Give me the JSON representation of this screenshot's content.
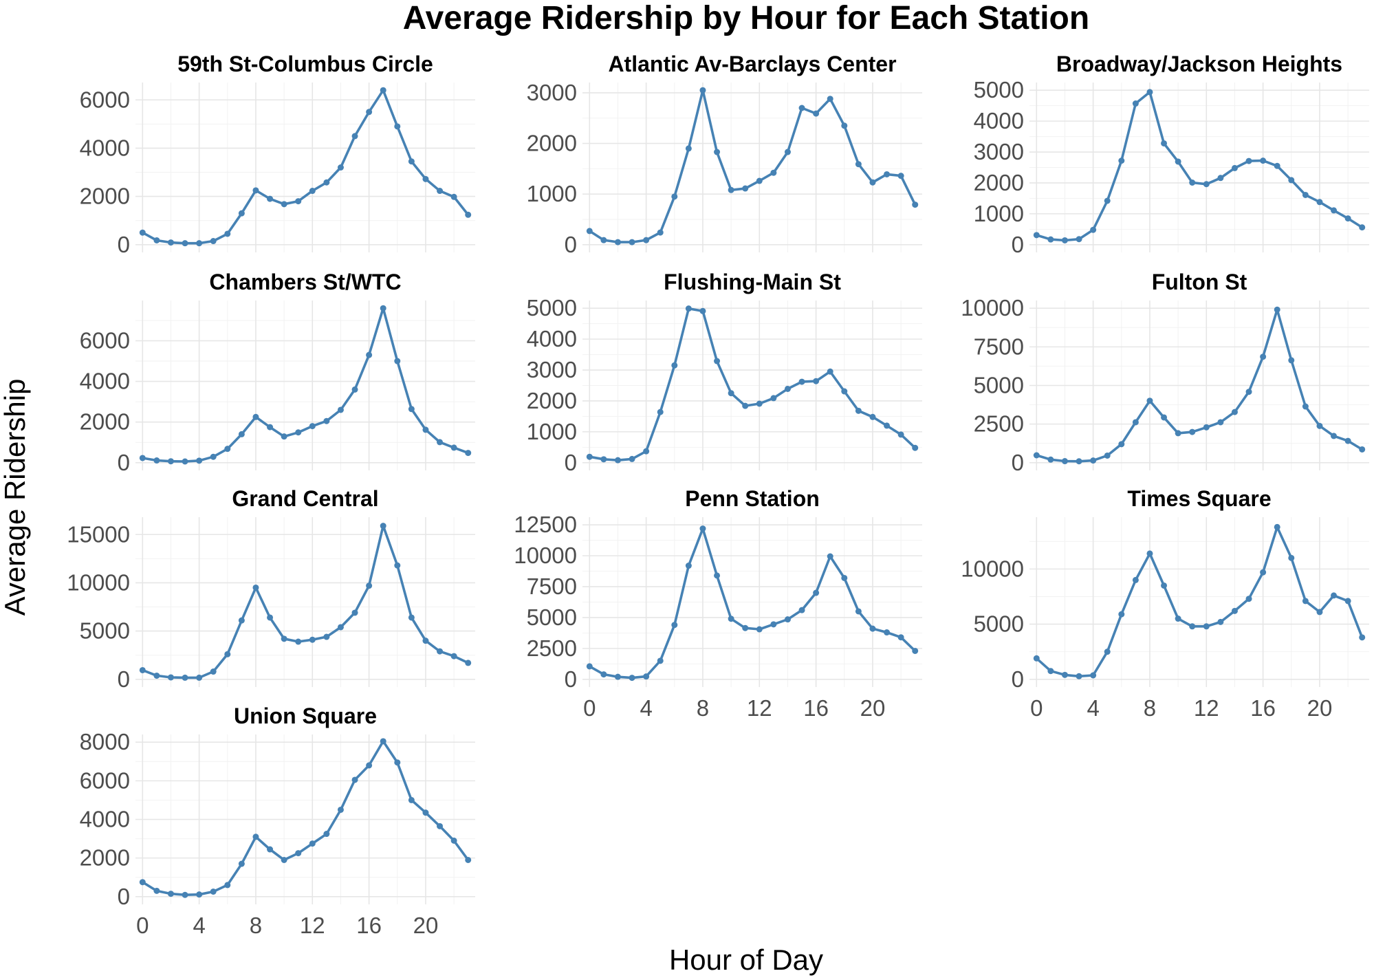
{
  "title": "Average Ridership by Hour for Each Station",
  "xlabel": "Hour of Day",
  "ylabel": "Average Ridership",
  "colors": {
    "series": "#4682b4",
    "grid": "#e6e6e6",
    "text": "#4d4d4d"
  },
  "chart_data": {
    "type": "line",
    "title": "Average Ridership by Hour for Each Station",
    "xlabel": "Hour of Day",
    "ylabel": "Average Ridership",
    "grid": true,
    "legend": "none",
    "x_ticks": [
      0,
      4,
      8,
      12,
      16,
      20
    ],
    "x_range": [
      0,
      23
    ],
    "panels": [
      {
        "name": "59th St-Columbus Circle",
        "y_ticks": [
          0,
          2000,
          4000,
          6000
        ],
        "ylim": [
          0,
          6400
        ],
        "x": [
          0,
          1,
          2,
          3,
          4,
          5,
          6,
          7,
          8,
          9,
          10,
          11,
          12,
          13,
          14,
          15,
          16,
          17,
          18,
          19,
          20,
          21,
          22,
          23
        ],
        "values": [
          500,
          180,
          90,
          60,
          60,
          150,
          450,
          1300,
          2250,
          1900,
          1680,
          1800,
          2230,
          2580,
          3200,
          4500,
          5500,
          6400,
          4900,
          3450,
          2720,
          2230,
          1980,
          1240
        ]
      },
      {
        "name": "Atlantic Av-Barclays Center",
        "y_ticks": [
          0,
          1000,
          2000,
          3000
        ],
        "ylim": [
          0,
          3050
        ],
        "x": [
          0,
          1,
          2,
          3,
          4,
          5,
          6,
          7,
          8,
          9,
          10,
          11,
          12,
          13,
          14,
          15,
          16,
          17,
          18,
          19,
          20,
          21,
          22,
          23
        ],
        "values": [
          270,
          90,
          50,
          50,
          90,
          240,
          950,
          1900,
          3050,
          1830,
          1080,
          1110,
          1260,
          1420,
          1830,
          2700,
          2590,
          2880,
          2350,
          1590,
          1230,
          1390,
          1360,
          790
        ]
      },
      {
        "name": "Broadway/Jackson Heights",
        "y_ticks": [
          0,
          1000,
          2000,
          3000,
          4000,
          5000
        ],
        "ylim": [
          0,
          5000
        ],
        "x": [
          0,
          1,
          2,
          3,
          4,
          5,
          6,
          7,
          8,
          9,
          10,
          11,
          12,
          13,
          14,
          15,
          16,
          17,
          18,
          19,
          20,
          21,
          22,
          23
        ],
        "values": [
          310,
          170,
          140,
          180,
          480,
          1420,
          2720,
          4570,
          4940,
          3280,
          2690,
          2010,
          1960,
          2160,
          2480,
          2710,
          2720,
          2550,
          2090,
          1610,
          1380,
          1110,
          850,
          560
        ]
      },
      {
        "name": "Chambers St/WTC",
        "y_ticks": [
          0,
          2000,
          4000,
          6000
        ],
        "ylim": [
          0,
          7600
        ],
        "x": [
          0,
          1,
          2,
          3,
          4,
          5,
          6,
          7,
          8,
          9,
          10,
          11,
          12,
          13,
          14,
          15,
          16,
          17,
          18,
          19,
          20,
          21,
          22,
          23
        ],
        "values": [
          230,
          110,
          70,
          60,
          100,
          290,
          680,
          1400,
          2250,
          1750,
          1290,
          1490,
          1800,
          2050,
          2600,
          3600,
          5300,
          7600,
          5000,
          2640,
          1620,
          1010,
          740,
          480
        ]
      },
      {
        "name": "Flushing-Main St",
        "y_ticks": [
          0,
          1000,
          2000,
          3000,
          4000,
          5000
        ],
        "ylim": [
          0,
          5000
        ],
        "x": [
          0,
          1,
          2,
          3,
          4,
          5,
          6,
          7,
          8,
          9,
          10,
          11,
          12,
          13,
          14,
          15,
          16,
          17,
          18,
          19,
          20,
          21,
          22,
          23
        ],
        "values": [
          190,
          110,
          80,
          120,
          370,
          1640,
          3150,
          4990,
          4910,
          3290,
          2250,
          1840,
          1910,
          2090,
          2390,
          2620,
          2640,
          2950,
          2310,
          1680,
          1480,
          1200,
          910,
          480
        ]
      },
      {
        "name": "Fulton St",
        "y_ticks": [
          0,
          2500,
          5000,
          7500,
          10000
        ],
        "ylim": [
          0,
          10000
        ],
        "x": [
          0,
          1,
          2,
          3,
          4,
          5,
          6,
          7,
          8,
          9,
          10,
          11,
          12,
          13,
          14,
          15,
          16,
          17,
          18,
          19,
          20,
          21,
          22,
          23
        ],
        "values": [
          480,
          200,
          100,
          90,
          140,
          460,
          1200,
          2620,
          4010,
          2930,
          1910,
          1990,
          2290,
          2620,
          3280,
          4590,
          6860,
          9910,
          6630,
          3640,
          2380,
          1730,
          1410,
          860
        ]
      },
      {
        "name": "Grand Central",
        "y_ticks": [
          0,
          5000,
          10000,
          15000
        ],
        "ylim": [
          0,
          16000
        ],
        "x": [
          0,
          1,
          2,
          3,
          4,
          5,
          6,
          7,
          8,
          9,
          10,
          11,
          12,
          13,
          14,
          15,
          16,
          17,
          18,
          19,
          20,
          21,
          22,
          23
        ],
        "values": [
          950,
          380,
          200,
          170,
          170,
          800,
          2600,
          6100,
          9500,
          6400,
          4200,
          3900,
          4100,
          4400,
          5400,
          6900,
          9700,
          15900,
          11800,
          6400,
          4000,
          2900,
          2400,
          1700
        ]
      },
      {
        "name": "Penn Station",
        "y_ticks": [
          0,
          2500,
          5000,
          7500,
          10000,
          12500
        ],
        "ylim": [
          0,
          12500
        ],
        "x": [
          0,
          1,
          2,
          3,
          4,
          5,
          6,
          7,
          8,
          9,
          10,
          11,
          12,
          13,
          14,
          15,
          16,
          17,
          18,
          19,
          20,
          21,
          22,
          23
        ],
        "values": [
          1050,
          400,
          200,
          120,
          230,
          1500,
          4400,
          9200,
          12200,
          8400,
          4900,
          4150,
          4050,
          4450,
          4850,
          5600,
          7000,
          9950,
          8200,
          5500,
          4100,
          3800,
          3400,
          2300
        ]
      },
      {
        "name": "Times Square",
        "y_ticks": [
          0,
          5000,
          10000
        ],
        "ylim": [
          0,
          14000
        ],
        "x": [
          0,
          1,
          2,
          3,
          4,
          5,
          6,
          7,
          8,
          9,
          10,
          11,
          12,
          13,
          14,
          15,
          16,
          17,
          18,
          19,
          20,
          21,
          22,
          23
        ],
        "values": [
          1900,
          750,
          400,
          280,
          360,
          2500,
          5900,
          9000,
          11400,
          8500,
          5500,
          4800,
          4800,
          5200,
          6200,
          7300,
          9700,
          13800,
          11000,
          7100,
          6100,
          7600,
          7100,
          3800
        ]
      },
      {
        "name": "Union Square",
        "y_ticks": [
          0,
          2000,
          4000,
          6000,
          8000
        ],
        "ylim": [
          0,
          8000
        ],
        "x": [
          0,
          1,
          2,
          3,
          4,
          5,
          6,
          7,
          8,
          9,
          10,
          11,
          12,
          13,
          14,
          15,
          16,
          17,
          18,
          19,
          20,
          21,
          22,
          23
        ],
        "values": [
          750,
          300,
          150,
          90,
          110,
          260,
          600,
          1700,
          3100,
          2450,
          1900,
          2250,
          2750,
          3250,
          4500,
          6050,
          6800,
          8050,
          6950,
          5000,
          4350,
          3650,
          2900,
          1900
        ]
      }
    ]
  }
}
